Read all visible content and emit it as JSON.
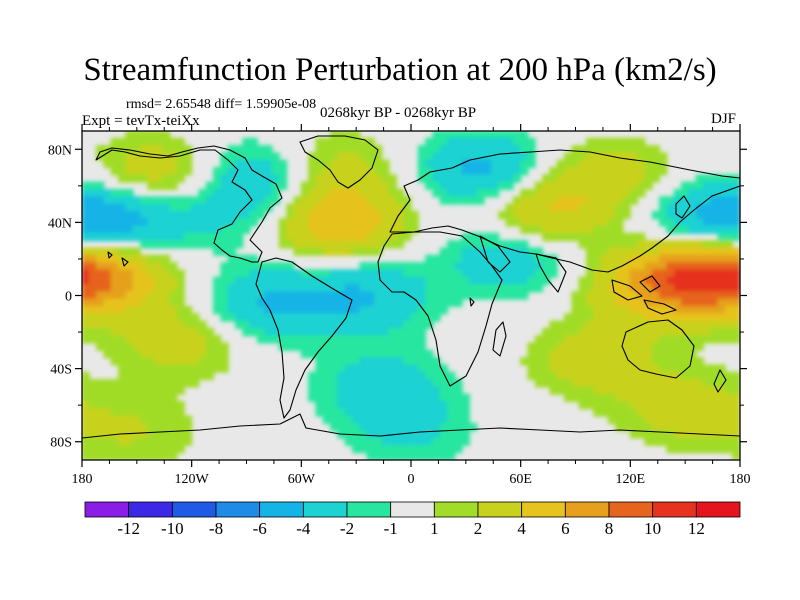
{
  "title": "Streamfunction Perturbation at 200 hPa (km2/s)",
  "stats_line": "rmsd= 2.65548 diff= 1.59905e-08",
  "expt_line": "Expt = tevTx-teiXx",
  "period_line": "0268kyr BP - 0268kyr BP",
  "season": "DJF",
  "map": {
    "projection": "cylindrical equidistant",
    "lon_range": [
      -180,
      180
    ],
    "lat_range": [
      -90,
      90
    ],
    "x_ticks": [
      {
        "lon": -180,
        "label": "180"
      },
      {
        "lon": -120,
        "label": "120W"
      },
      {
        "lon": -60,
        "label": "60W"
      },
      {
        "lon": 0,
        "label": "0"
      },
      {
        "lon": 60,
        "label": "60E"
      },
      {
        "lon": 120,
        "label": "120E"
      },
      {
        "lon": 180,
        "label": "180"
      }
    ],
    "y_ticks": [
      {
        "lat": 80,
        "label": "80N"
      },
      {
        "lat": 40,
        "label": "40N"
      },
      {
        "lat": 0,
        "label": "0"
      },
      {
        "lat": -40,
        "label": "40S"
      },
      {
        "lat": -80,
        "label": "80S"
      }
    ],
    "background_color": "#e8e8e8",
    "field_anomalies": [
      {
        "lon": -160,
        "lat": 40,
        "value": -6
      },
      {
        "lon": -165,
        "lat": 12,
        "value": 6
      },
      {
        "lon": -140,
        "lat": 65,
        "value": 4
      },
      {
        "lon": -100,
        "lat": 45,
        "value": -2
      },
      {
        "lon": -80,
        "lat": 65,
        "value": -4
      },
      {
        "lon": -45,
        "lat": 70,
        "value": 3
      },
      {
        "lon": -40,
        "lat": 40,
        "value": 6
      },
      {
        "lon": 40,
        "lat": 68,
        "value": -5
      },
      {
        "lon": 110,
        "lat": 65,
        "value": 3
      },
      {
        "lon": 70,
        "lat": 45,
        "value": 5
      },
      {
        "lon": 160,
        "lat": 42,
        "value": -4
      },
      {
        "lon": 160,
        "lat": 10,
        "value": 8
      },
      {
        "lon": 130,
        "lat": 5,
        "value": 4
      },
      {
        "lon": 55,
        "lat": 22,
        "value": -4
      },
      {
        "lon": -25,
        "lat": 0,
        "value": -4
      },
      {
        "lon": -80,
        "lat": -5,
        "value": -4
      },
      {
        "lon": -125,
        "lat": -25,
        "value": 3
      },
      {
        "lon": 100,
        "lat": -35,
        "value": 3
      },
      {
        "lon": -15,
        "lat": -50,
        "value": -3
      },
      {
        "lon": -150,
        "lat": -75,
        "value": 2
      },
      {
        "lon": 0,
        "lat": -75,
        "value": -2
      },
      {
        "lon": 150,
        "lat": -62,
        "value": 3
      }
    ]
  },
  "colorbar": {
    "labels": [
      "-12",
      "-10",
      "-8",
      "-6",
      "-4",
      "-2",
      "-1",
      "1",
      "2",
      "4",
      "6",
      "8",
      "10",
      "12"
    ],
    "colors": [
      "#8a1ee6",
      "#3c28e6",
      "#1e5ae6",
      "#1e8ce6",
      "#14b4e6",
      "#1ed2d2",
      "#28e6a0",
      "#e8e8e8",
      "#a0dc28",
      "#c8d21e",
      "#e6c31e",
      "#e6a01e",
      "#e6641e",
      "#e6321e",
      "#e6141e"
    ]
  }
}
